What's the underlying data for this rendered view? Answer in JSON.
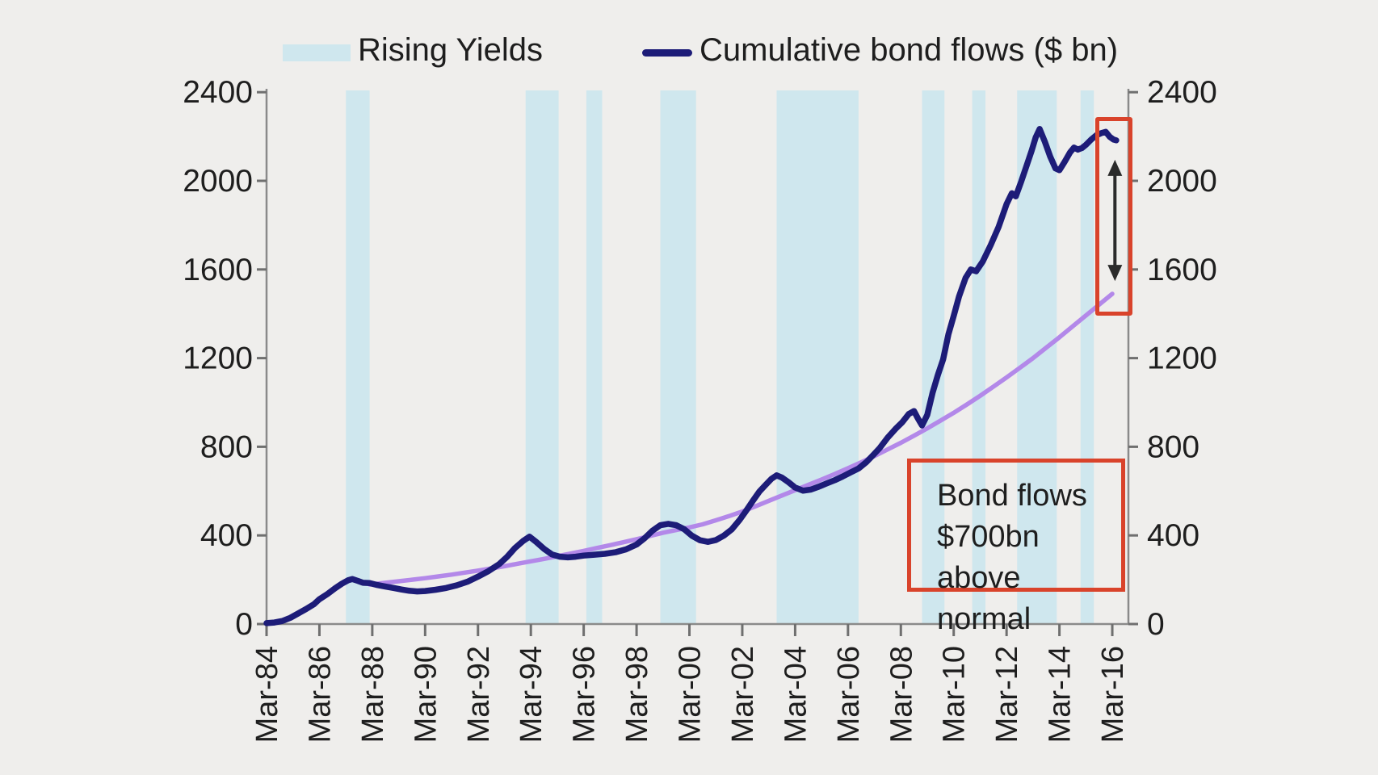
{
  "chart_data": {
    "type": "line",
    "title": "",
    "x_axis": {
      "tick_labels": [
        "Mar-84",
        "Mar-86",
        "Mar-88",
        "Mar-90",
        "Mar-92",
        "Mar-94",
        "Mar-96",
        "Mar-98",
        "Mar-00",
        "Mar-02",
        "Mar-04",
        "Mar-06",
        "Mar-08",
        "Mar-10",
        "Mar-12",
        "Mar-14",
        "Mar-16"
      ],
      "start_year": 1984.0,
      "end_year": 2016.0,
      "tick_interval_years": 2
    },
    "y_axis": {
      "ticks": [
        0,
        400,
        800,
        1200,
        1600,
        2000,
        2400
      ],
      "range": [
        0,
        2400
      ],
      "shown_on": "both"
    },
    "legend": [
      {
        "label": "Rising Yields",
        "swatch": "band",
        "color": "#cfe7ee"
      },
      {
        "label": "Cumulative bond flows ($ bn)",
        "swatch": "line",
        "color": "#1d1c78"
      }
    ],
    "rising_yield_periods": [
      [
        1987.0,
        1987.9
      ],
      [
        1993.8,
        1995.05
      ],
      [
        1996.1,
        1996.7
      ],
      [
        1998.9,
        2000.25
      ],
      [
        2003.3,
        2006.4
      ],
      [
        2008.8,
        2009.65
      ],
      [
        2010.7,
        2011.2
      ],
      [
        2012.4,
        2013.9
      ],
      [
        2014.8,
        2015.3
      ]
    ],
    "series": [
      {
        "name": "Cumulative bond flows ($ bn)",
        "color": "#1d1c78",
        "points": [
          [
            1984.0,
            4
          ],
          [
            1984.3,
            7
          ],
          [
            1984.6,
            14
          ],
          [
            1984.9,
            28
          ],
          [
            1985.2,
            48
          ],
          [
            1985.5,
            68
          ],
          [
            1985.8,
            90
          ],
          [
            1986.0,
            112
          ],
          [
            1986.3,
            135
          ],
          [
            1986.6,
            162
          ],
          [
            1986.85,
            182
          ],
          [
            1987.1,
            198
          ],
          [
            1987.25,
            203
          ],
          [
            1987.45,
            195
          ],
          [
            1987.65,
            186
          ],
          [
            1987.9,
            185
          ],
          [
            1988.2,
            176
          ],
          [
            1988.5,
            169
          ],
          [
            1988.8,
            163
          ],
          [
            1989.1,
            156
          ],
          [
            1989.4,
            150
          ],
          [
            1989.7,
            147
          ],
          [
            1990.0,
            149
          ],
          [
            1990.4,
            155
          ],
          [
            1990.8,
            163
          ],
          [
            1991.2,
            175
          ],
          [
            1991.6,
            191
          ],
          [
            1992.0,
            214
          ],
          [
            1992.4,
            239
          ],
          [
            1992.8,
            270
          ],
          [
            1993.1,
            303
          ],
          [
            1993.4,
            343
          ],
          [
            1993.7,
            374
          ],
          [
            1993.95,
            394
          ],
          [
            1994.2,
            371
          ],
          [
            1994.5,
            339
          ],
          [
            1994.8,
            314
          ],
          [
            1995.1,
            304
          ],
          [
            1995.4,
            301
          ],
          [
            1995.7,
            304
          ],
          [
            1996.0,
            309
          ],
          [
            1996.4,
            313
          ],
          [
            1996.8,
            317
          ],
          [
            1997.2,
            324
          ],
          [
            1997.6,
            337
          ],
          [
            1998.0,
            359
          ],
          [
            1998.3,
            387
          ],
          [
            1998.6,
            421
          ],
          [
            1998.9,
            446
          ],
          [
            1999.2,
            452
          ],
          [
            1999.5,
            446
          ],
          [
            1999.8,
            428
          ],
          [
            2000.1,
            398
          ],
          [
            2000.4,
            378
          ],
          [
            2000.7,
            371
          ],
          [
            2001.0,
            379
          ],
          [
            2001.3,
            399
          ],
          [
            2001.6,
            427
          ],
          [
            2001.9,
            470
          ],
          [
            2002.15,
            512
          ],
          [
            2002.4,
            556
          ],
          [
            2002.65,
            598
          ],
          [
            2002.9,
            630
          ],
          [
            2003.1,
            655
          ],
          [
            2003.3,
            671
          ],
          [
            2003.5,
            661
          ],
          [
            2003.75,
            640
          ],
          [
            2004.0,
            616
          ],
          [
            2004.3,
            602
          ],
          [
            2004.6,
            607
          ],
          [
            2004.9,
            620
          ],
          [
            2005.2,
            635
          ],
          [
            2005.5,
            649
          ],
          [
            2005.8,
            666
          ],
          [
            2006.1,
            684
          ],
          [
            2006.4,
            702
          ],
          [
            2006.7,
            731
          ],
          [
            2006.95,
            762
          ],
          [
            2007.2,
            794
          ],
          [
            2007.5,
            841
          ],
          [
            2007.8,
            881
          ],
          [
            2008.05,
            910
          ],
          [
            2008.3,
            948
          ],
          [
            2008.5,
            961
          ],
          [
            2008.65,
            927
          ],
          [
            2008.8,
            896
          ],
          [
            2009.0,
            944
          ],
          [
            2009.2,
            1043
          ],
          [
            2009.4,
            1124
          ],
          [
            2009.6,
            1194
          ],
          [
            2009.8,
            1308
          ],
          [
            2010.0,
            1390
          ],
          [
            2010.2,
            1478
          ],
          [
            2010.45,
            1562
          ],
          [
            2010.65,
            1600
          ],
          [
            2010.85,
            1592
          ],
          [
            2011.1,
            1636
          ],
          [
            2011.4,
            1710
          ],
          [
            2011.7,
            1792
          ],
          [
            2012.0,
            1895
          ],
          [
            2012.2,
            1944
          ],
          [
            2012.35,
            1930
          ],
          [
            2012.55,
            1996
          ],
          [
            2012.75,
            2066
          ],
          [
            2012.95,
            2136
          ],
          [
            2013.1,
            2196
          ],
          [
            2013.25,
            2234
          ],
          [
            2013.45,
            2176
          ],
          [
            2013.65,
            2110
          ],
          [
            2013.85,
            2056
          ],
          [
            2014.0,
            2048
          ],
          [
            2014.2,
            2086
          ],
          [
            2014.4,
            2128
          ],
          [
            2014.55,
            2150
          ],
          [
            2014.7,
            2141
          ],
          [
            2014.85,
            2148
          ],
          [
            2015.0,
            2162
          ],
          [
            2015.2,
            2186
          ],
          [
            2015.4,
            2206
          ],
          [
            2015.6,
            2216
          ],
          [
            2015.75,
            2221
          ],
          [
            2015.9,
            2199
          ],
          [
            2016.05,
            2186
          ],
          [
            2016.15,
            2183
          ]
        ]
      },
      {
        "name": "trend",
        "color": "#b388e9",
        "points": [
          [
            1987.9,
            178
          ],
          [
            1988.5,
            186
          ],
          [
            1989,
            193
          ],
          [
            1989.5,
            200
          ],
          [
            1990,
            207
          ],
          [
            1990.5,
            215
          ],
          [
            1991,
            223
          ],
          [
            1991.5,
            232
          ],
          [
            1992,
            241
          ],
          [
            1992.5,
            251
          ],
          [
            1993,
            261
          ],
          [
            1993.5,
            272
          ],
          [
            1994,
            283
          ],
          [
            1994.5,
            294
          ],
          [
            1995,
            306
          ],
          [
            1995.5,
            318
          ],
          [
            1996,
            330
          ],
          [
            1996.5,
            343
          ],
          [
            1997,
            356
          ],
          [
            1997.5,
            369
          ],
          [
            1998,
            383
          ],
          [
            1998.5,
            397
          ],
          [
            1999,
            412
          ],
          [
            1999.5,
            424
          ],
          [
            2000,
            436
          ],
          [
            2000.5,
            450
          ],
          [
            2001,
            468
          ],
          [
            2001.5,
            487
          ],
          [
            2002,
            508
          ],
          [
            2002.5,
            531
          ],
          [
            2003,
            556
          ],
          [
            2003.5,
            580
          ],
          [
            2004,
            604
          ],
          [
            2004.5,
            628
          ],
          [
            2005,
            652
          ],
          [
            2005.5,
            677
          ],
          [
            2006,
            703
          ],
          [
            2006.5,
            730
          ],
          [
            2007,
            758
          ],
          [
            2007.5,
            788
          ],
          [
            2008,
            818
          ],
          [
            2008.5,
            850
          ],
          [
            2009,
            883
          ],
          [
            2009.5,
            918
          ],
          [
            2010,
            953
          ],
          [
            2010.5,
            991
          ],
          [
            2011,
            1030
          ],
          [
            2011.5,
            1071
          ],
          [
            2012,
            1113
          ],
          [
            2012.5,
            1156
          ],
          [
            2013,
            1200
          ],
          [
            2013.5,
            1247
          ],
          [
            2014,
            1294
          ],
          [
            2014.5,
            1343
          ],
          [
            2015,
            1392
          ],
          [
            2015.5,
            1441
          ],
          [
            2016,
            1490
          ]
        ]
      }
    ],
    "annotations": [
      {
        "id": "gap_note",
        "text": "Bond flows\n$700bn above\nnormal",
        "border_color": "#d9432b"
      },
      {
        "id": "gap_marker",
        "border_color": "#d9432b",
        "arrow_at_year": 2016.1,
        "arrow_from_value": 1548,
        "arrow_to_value": 2095
      }
    ],
    "colors": {
      "background": "#efeeec",
      "band": "#cfe7ee",
      "axis": "#8a8a8a",
      "tick": "#6f6f6f",
      "text": "#1e1e1e",
      "arrow": "#2b2b2b"
    },
    "layout_hints": {
      "grid": "off",
      "legend_position": "top",
      "x_labels_rotated_90": true
    }
  }
}
